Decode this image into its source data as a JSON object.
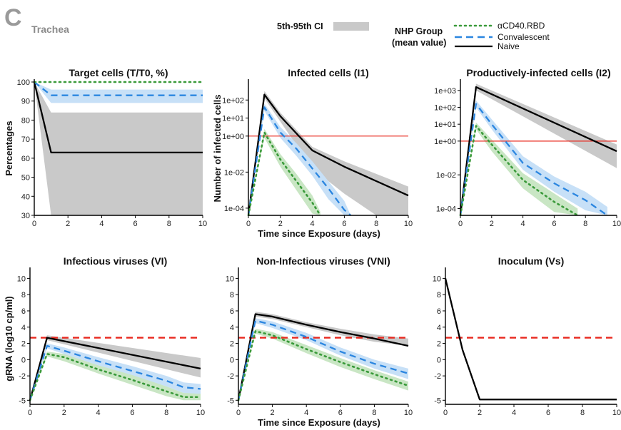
{
  "header": {
    "panel_letter": "C",
    "tissue": "Trachea"
  },
  "legend": {
    "ci_label": "5th-95th CI",
    "group_title_line1": "NHP Group",
    "group_title_line2": "(mean value)",
    "entries": [
      "αCD40.RBD",
      "Convalescent",
      "Naive"
    ]
  },
  "colors": {
    "acd40": "#3a9a3a",
    "conv": "#2b86e0",
    "naive": "#000000",
    "acd40_band": "#c9e6c4",
    "conv_band": "#c7e0f7",
    "naive_band": "#c9c9c9",
    "threshold": "#e8281e"
  },
  "shared_labels": {
    "x_bottom": "Time since Exposure (days)",
    "y_top_left": "Percentages",
    "y_top_mid": "Number of infected cells",
    "y_bottom_left": "gRNA (log10 cp/ml)"
  },
  "chart_data": [
    {
      "id": "target",
      "type": "line",
      "title": "Target cells (T/T0, %)",
      "xlim": [
        0,
        10
      ],
      "ylim": [
        30,
        100
      ],
      "scale": "linear",
      "xticks": [
        "0",
        "2",
        "4",
        "6",
        "8",
        "10"
      ],
      "yticks": [
        {
          "v": 30,
          "l": "30"
        },
        {
          "v": 40,
          "l": "40"
        },
        {
          "v": 50,
          "l": "50"
        },
        {
          "v": 60,
          "l": "60"
        },
        {
          "v": 70,
          "l": "70"
        },
        {
          "v": 80,
          "l": "80"
        },
        {
          "v": 90,
          "l": "90"
        },
        {
          "v": 100,
          "l": "100"
        }
      ],
      "series": [
        {
          "name": "Naive",
          "x": [
            0,
            1,
            10
          ],
          "y": [
            100,
            63,
            63
          ],
          "lo": [
            100,
            30,
            30
          ],
          "hi": [
            100,
            84,
            84
          ]
        },
        {
          "name": "Convalescent",
          "x": [
            0,
            1,
            10
          ],
          "y": [
            100,
            93,
            93
          ],
          "lo": [
            100,
            89,
            89
          ],
          "hi": [
            100,
            96,
            96
          ]
        },
        {
          "name": "αCD40.RBD",
          "x": [
            0,
            1,
            10
          ],
          "y": [
            100,
            100,
            100
          ]
        }
      ]
    },
    {
      "id": "i1",
      "type": "line",
      "title": "Infected cells (I1)",
      "xlim": [
        0,
        10
      ],
      "ylim": [
        -4.4,
        3
      ],
      "scale": "log10",
      "xticks": [
        "0",
        "2",
        "4",
        "6",
        "8",
        "10"
      ],
      "yticks": [
        {
          "v": 2,
          "l": "1e+02"
        },
        {
          "v": 1,
          "l": "1e+01"
        },
        {
          "v": 0,
          "l": "1e+00"
        },
        {
          "v": -2,
          "l": "1e-02"
        },
        {
          "v": -4,
          "l": "1e-04"
        }
      ],
      "hline": 0,
      "series": [
        {
          "name": "Naive",
          "x": [
            0,
            1,
            2,
            4,
            6,
            8,
            10
          ],
          "y": [
            -4.4,
            2.3,
            1.1,
            -0.8,
            -1.7,
            -2.5,
            -3.3
          ],
          "lo": [
            -4.4,
            2.1,
            0.8,
            -1.8,
            -3.2,
            -4.4,
            -4.4
          ],
          "hi": [
            -4.4,
            2.5,
            1.3,
            -0.6,
            -1.4,
            -2.1,
            -2.8
          ]
        },
        {
          "name": "Convalescent",
          "x": [
            0,
            1,
            2,
            3,
            4,
            5,
            6,
            6.4
          ],
          "y": [
            -4.4,
            1.6,
            0.2,
            -0.7,
            -1.8,
            -2.9,
            -4.1,
            -4.4
          ],
          "lo": [
            -4.4,
            1.4,
            -0.1,
            -1.1,
            -2.2,
            -3.5,
            -4.4,
            -4.4
          ],
          "hi": [
            -4.4,
            1.8,
            0.5,
            -0.4,
            -1.4,
            -2.5,
            -3.6,
            -4.4
          ]
        },
        {
          "name": "αCD40.RBD",
          "x": [
            0,
            1,
            2,
            3,
            4,
            4.5
          ],
          "y": [
            -4.4,
            0.2,
            -1.3,
            -2.5,
            -3.7,
            -4.4
          ],
          "lo": [
            -4.4,
            -0.1,
            -1.7,
            -3.0,
            -4.3,
            -4.4
          ],
          "hi": [
            -4.4,
            0.4,
            -1.0,
            -2.1,
            -3.3,
            -4.2
          ]
        }
      ]
    },
    {
      "id": "i2",
      "type": "line",
      "title": "Productively-infected cells (I2)",
      "xlim": [
        0,
        10
      ],
      "ylim": [
        -4.4,
        3.5
      ],
      "scale": "log10",
      "xticks": [
        "0",
        "2",
        "4",
        "6",
        "8",
        "10"
      ],
      "yticks": [
        {
          "v": 3,
          "l": "1e+03"
        },
        {
          "v": 2,
          "l": "1e+02"
        },
        {
          "v": 1,
          "l": "1e+01"
        },
        {
          "v": 0,
          "l": "1e+00"
        },
        {
          "v": -2,
          "l": "1e-02"
        },
        {
          "v": -4,
          "l": "1e-04"
        }
      ],
      "hline": 0,
      "series": [
        {
          "name": "Naive",
          "x": [
            0,
            1,
            10
          ],
          "y": [
            -4.4,
            3.2,
            -0.6
          ],
          "lo": [
            -4.4,
            3.0,
            -1.6
          ],
          "hi": [
            -4.4,
            3.4,
            -0.2
          ]
        },
        {
          "name": "Convalescent",
          "x": [
            0,
            1,
            2,
            4,
            6,
            8,
            9.4
          ],
          "y": [
            -4.4,
            2.2,
            1.0,
            -1.3,
            -2.5,
            -3.5,
            -4.4
          ],
          "lo": [
            -4.4,
            2.0,
            0.7,
            -1.7,
            -3.0,
            -4.1,
            -4.4
          ],
          "hi": [
            -4.4,
            2.4,
            1.3,
            -0.9,
            -2.1,
            -3.0,
            -3.9
          ]
        },
        {
          "name": "αCD40.RBD",
          "x": [
            0,
            1,
            2,
            4,
            6,
            7.5
          ],
          "y": [
            -4.4,
            0.9,
            -0.2,
            -2.3,
            -3.6,
            -4.4
          ],
          "lo": [
            -4.4,
            0.7,
            -0.6,
            -2.8,
            -4.2,
            -4.4
          ],
          "hi": [
            -4.4,
            1.1,
            0.1,
            -1.9,
            -3.1,
            -4.0
          ]
        }
      ]
    },
    {
      "id": "vi",
      "type": "line",
      "title": "Infectious viruses (VI)",
      "xlim": [
        0,
        10
      ],
      "ylim": [
        -5.5,
        11
      ],
      "scale": "linear",
      "xticks": [
        "0",
        "2",
        "4",
        "6",
        "8",
        "10"
      ],
      "yticks": [
        {
          "v": 10,
          "l": "10"
        },
        {
          "v": 8,
          "l": "8"
        },
        {
          "v": 6,
          "l": "6"
        },
        {
          "v": 4,
          "l": "4"
        },
        {
          "v": 2,
          "l": "2"
        },
        {
          "v": 0,
          "l": "0"
        },
        {
          "v": -2,
          "l": "-2"
        },
        {
          "v": -5,
          "l": "-5"
        }
      ],
      "hline": 2.7,
      "series": [
        {
          "name": "Naive",
          "x": [
            0,
            1,
            10
          ],
          "y": [
            -5,
            2.7,
            -1.1
          ],
          "lo": [
            -5,
            2.4,
            -2.2
          ],
          "hi": [
            -5,
            3.0,
            0.2
          ]
        },
        {
          "name": "Convalescent",
          "x": [
            0,
            1,
            2,
            4,
            6,
            8,
            9,
            10
          ],
          "y": [
            -5,
            1.7,
            1.1,
            -0.2,
            -1.4,
            -2.6,
            -3.4,
            -3.6
          ],
          "lo": [
            -5,
            1.4,
            0.7,
            -0.7,
            -2.0,
            -3.3,
            -4.1,
            -4.4
          ],
          "hi": [
            -5,
            2.0,
            1.5,
            0.3,
            -0.8,
            -2.0,
            -2.8,
            -3.0
          ]
        },
        {
          "name": "αCD40.RBD",
          "x": [
            0,
            1,
            2,
            4,
            6,
            8,
            9,
            10
          ],
          "y": [
            -5,
            0.7,
            0.3,
            -1.2,
            -2.5,
            -3.9,
            -4.6,
            -4.6
          ],
          "lo": [
            -5,
            0.4,
            -0.2,
            -1.7,
            -3.1,
            -4.5,
            -5.0,
            -5.0
          ],
          "hi": [
            -5,
            1.0,
            0.7,
            -0.7,
            -1.9,
            -3.3,
            -4.1,
            -4.2
          ]
        }
      ]
    },
    {
      "id": "vni",
      "type": "line",
      "title": "Non-Infectious viruses (VNI)",
      "xlim": [
        0,
        10
      ],
      "ylim": [
        -5.5,
        11
      ],
      "scale": "linear",
      "xticks": [
        "0",
        "2",
        "4",
        "6",
        "8",
        "10"
      ],
      "yticks": [
        {
          "v": 10,
          "l": "10"
        },
        {
          "v": 8,
          "l": "8"
        },
        {
          "v": 6,
          "l": "6"
        },
        {
          "v": 4,
          "l": "4"
        },
        {
          "v": 2,
          "l": "2"
        },
        {
          "v": 0,
          "l": "0"
        },
        {
          "v": -2,
          "l": "-2"
        },
        {
          "v": -5,
          "l": "-5"
        }
      ],
      "hline": 2.7,
      "series": [
        {
          "name": "Naive",
          "x": [
            0,
            1,
            2,
            4,
            6,
            8,
            10
          ],
          "y": [
            -5,
            5.6,
            5.3,
            4.3,
            3.4,
            2.6,
            1.7
          ],
          "lo": [
            -5,
            5.3,
            5.0,
            4.0,
            3.0,
            2.2,
            1.7
          ],
          "hi": [
            -5,
            5.9,
            5.6,
            4.6,
            3.8,
            3.1,
            2.6
          ]
        },
        {
          "name": "Convalescent",
          "x": [
            0,
            1,
            2,
            4,
            6,
            8,
            10
          ],
          "y": [
            -5,
            4.8,
            4.3,
            2.8,
            1.0,
            -0.5,
            -1.7
          ],
          "lo": [
            -5,
            4.5,
            3.9,
            2.4,
            0.5,
            -1.1,
            -2.4
          ],
          "hi": [
            -5,
            5.1,
            4.7,
            3.3,
            1.5,
            0.0,
            -1.1
          ]
        },
        {
          "name": "αCD40.RBD",
          "x": [
            0,
            1,
            2,
            4,
            6,
            8,
            10
          ],
          "y": [
            -5,
            3.5,
            3.0,
            1.3,
            -0.3,
            -1.8,
            -3.2
          ],
          "lo": [
            -5,
            3.2,
            2.6,
            0.8,
            -0.9,
            -2.4,
            -3.8
          ],
          "hi": [
            -5,
            3.8,
            3.4,
            1.8,
            0.2,
            -1.3,
            -2.7
          ]
        }
      ]
    },
    {
      "id": "vs",
      "type": "line",
      "title": "Inoculum (Vs)",
      "xlim": [
        0,
        10
      ],
      "ylim": [
        -5.5,
        11
      ],
      "scale": "linear",
      "xticks": [
        "0",
        "2",
        "4",
        "6",
        "8",
        "10"
      ],
      "yticks": [
        {
          "v": 10,
          "l": "10"
        },
        {
          "v": 8,
          "l": "8"
        },
        {
          "v": 6,
          "l": "6"
        },
        {
          "v": 4,
          "l": "4"
        },
        {
          "v": 2,
          "l": "2"
        },
        {
          "v": 0,
          "l": "0"
        },
        {
          "v": -2,
          "l": "-2"
        },
        {
          "v": -5,
          "l": "-5"
        }
      ],
      "hline": 2.7,
      "series": [
        {
          "name": "Naive",
          "x": [
            0,
            1,
            2,
            10
          ],
          "y": [
            10,
            1.2,
            -4.9,
            -4.9
          ]
        }
      ]
    }
  ]
}
